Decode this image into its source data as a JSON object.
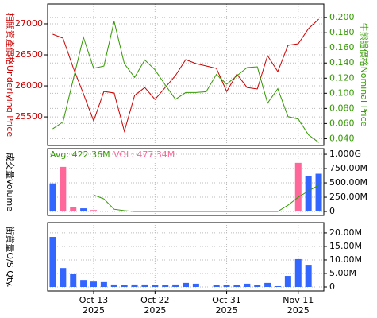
{
  "chart_data": [
    {
      "type": "line",
      "ylabel": "相關資產價格Underlying Price",
      "y2label": "牛熊證價格Nominal Price",
      "ylim": [
        25040,
        27320
      ],
      "yticks": [
        25500,
        26000,
        26500,
        27000
      ],
      "y2lim": [
        0.031,
        0.218
      ],
      "y2ticks": [
        {
          "value": 0.04,
          "label": "0.040"
        },
        {
          "value": 0.06,
          "label": "0.060"
        },
        {
          "value": 0.08,
          "label": "0.080"
        },
        {
          "value": 0.1,
          "label": "0.100"
        },
        {
          "value": 0.12,
          "label": "0.120"
        },
        {
          "value": 0.14,
          "label": "0.140"
        },
        {
          "value": 0.16,
          "label": "0.160"
        },
        {
          "value": 0.18,
          "label": "0.180"
        },
        {
          "value": 0.2,
          "label": "0.200"
        }
      ],
      "grid": true,
      "series": [
        {
          "color": "#cc0000",
          "values": [
            26833,
            26769,
            26295,
            25872,
            25436,
            25910,
            25885,
            25269,
            25846,
            25974,
            25782,
            25974,
            26167,
            26423,
            26359,
            26321,
            26282,
            25910,
            26192,
            25974,
            25949,
            26487,
            26231,
            26654,
            26680,
            26923,
            27077
          ]
        },
        {
          "color": "#339900",
          "axis": "y2",
          "values": [
            0.053,
            0.062,
            0.118,
            0.174,
            0.133,
            0.136,
            0.195,
            0.139,
            0.121,
            0.144,
            0.131,
            0.111,
            0.092,
            0.101,
            0.101,
            0.102,
            0.125,
            0.112,
            0.123,
            0.134,
            0.135,
            0.087,
            0.106,
            0.069,
            0.066,
            0.045,
            0.035
          ]
        }
      ]
    },
    {
      "type": "bar",
      "ylabel": "成交量Volume",
      "annotations": [
        "Avg: 422.36M",
        "VOL: 477.34M"
      ],
      "ylim": [
        -69000000,
        1098000000
      ],
      "yticks": [
        0,
        {
          "value": 250000000,
          "label": "250.00M"
        },
        {
          "value": 500000000,
          "label": "500.00M"
        },
        {
          "value": 750000000,
          "label": "750.00M"
        },
        {
          "value": 1000000000,
          "label": "1.000G"
        }
      ],
      "grid": true,
      "series": [
        {
          "values": [
            490000000,
            780000000,
            70000000,
            55000000,
            25000000,
            0,
            0,
            0,
            0,
            0,
            0,
            0,
            0,
            0,
            0,
            0,
            0,
            0,
            0,
            0,
            0,
            0,
            0,
            0,
            850000000,
            620000000,
            660000000
          ],
          "colors": [
            "#3366ff",
            "#ff6699",
            "#ff6699",
            "#3366ff",
            "#ff6699",
            "#3366ff",
            "#3366ff",
            "#3366ff",
            "#3366ff",
            "#3366ff",
            "#3366ff",
            "#3366ff",
            "#3366ff",
            "#3366ff",
            "#3366ff",
            "#3366ff",
            "#3366ff",
            "#3366ff",
            "#3366ff",
            "#3366ff",
            "#3366ff",
            "#3366ff",
            "#3366ff",
            "#3366ff",
            "#ff6699",
            "#3366ff",
            "#3366ff"
          ]
        },
        {
          "type": "line",
          "color": "#339900",
          "values": [
            null,
            null,
            null,
            null,
            290000000,
            220000000,
            40000000,
            15000000,
            0,
            0,
            0,
            0,
            0,
            0,
            0,
            0,
            0,
            0,
            0,
            0,
            0,
            0,
            0,
            110000000,
            250000000,
            360000000,
            460000000
          ]
        }
      ]
    },
    {
      "type": "bar",
      "ylabel": "街貨量O/S Qty.",
      "categories": [
        null,
        null,
        null,
        null,
        "Oct 13 2025",
        null,
        null,
        null,
        null,
        null,
        "Oct 22 2025",
        null,
        null,
        null,
        null,
        null,
        null,
        "Oct 31 2025",
        null,
        null,
        null,
        null,
        null,
        null,
        "Nov 11 2025",
        null,
        null
      ],
      "ylim": [
        -1470000,
        23800000
      ],
      "yticks": [
        0,
        {
          "value": 5000000,
          "label": "5.00M"
        },
        {
          "value": 10000000,
          "label": "10.00M"
        },
        {
          "value": 15000000,
          "label": "15.00M"
        },
        {
          "value": 20000000,
          "label": "20.00M"
        }
      ],
      "grid": true,
      "series": [
        {
          "color": "#3366ff",
          "values": [
            18500000,
            7000000,
            4700000,
            2600000,
            2000000,
            1800000,
            900000,
            600000,
            900000,
            900000,
            600000,
            600000,
            900000,
            1500000,
            1200000,
            null,
            600000,
            600000,
            600000,
            1200000,
            600000,
            1500000,
            300000,
            4100000,
            10300000,
            8200000,
            null
          ]
        }
      ]
    }
  ]
}
